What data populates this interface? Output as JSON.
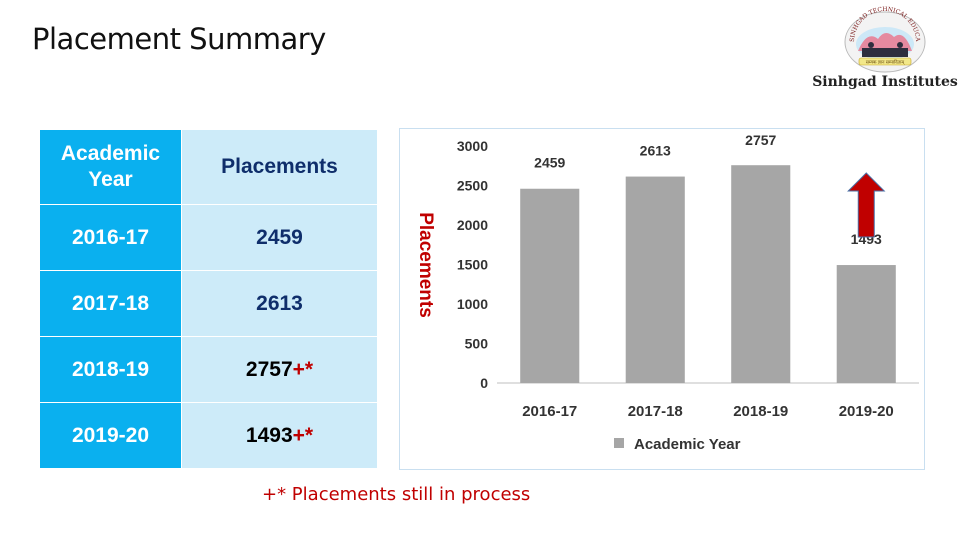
{
  "slide": {
    "title": "Placement Summary"
  },
  "logo": {
    "ring_text": "SINHGAD TECHNICAL EDUCATION SOCIETY, PUNE",
    "motto": "सम्यक ज्ञान सम्पादिताम्",
    "name": "Sinhgad Institutes"
  },
  "table": {
    "headers": [
      "Academic Year",
      "Placements"
    ],
    "rows": [
      {
        "year": "2016-17",
        "value": "2459",
        "mark": ""
      },
      {
        "year": "2017-18",
        "value": "2613",
        "mark": ""
      },
      {
        "year": "2018-19",
        "value": "2757",
        "mark": "+*"
      },
      {
        "year": "2019-20",
        "value": "1493",
        "mark": "+*"
      }
    ]
  },
  "footnote": "+* Placements still in process",
  "colors": {
    "bar": "#a6a6a6",
    "arrow": "#c00000",
    "header_cyan": "#0ab0ef",
    "cell_light": "#cdebf9",
    "navy_text": "#0f2e6b",
    "accent_red": "#c00000"
  },
  "chart_data": {
    "type": "bar",
    "categories": [
      "2016-17",
      "2017-18",
      "2018-19",
      "2019-20"
    ],
    "series": [
      {
        "name": "Academic Year",
        "values": [
          2459,
          2613,
          2757,
          1493
        ]
      }
    ],
    "data_labels": [
      "2459",
      "2613",
      "2757",
      "1493"
    ],
    "ylabel": "Placements",
    "xlabel": "",
    "ylim": [
      0,
      3000
    ],
    "yticks": [
      0,
      500,
      1000,
      1500,
      2000,
      2500,
      3000
    ],
    "grid": false,
    "legend": "bottom",
    "annotation": "up-arrow-over-2019-20"
  }
}
